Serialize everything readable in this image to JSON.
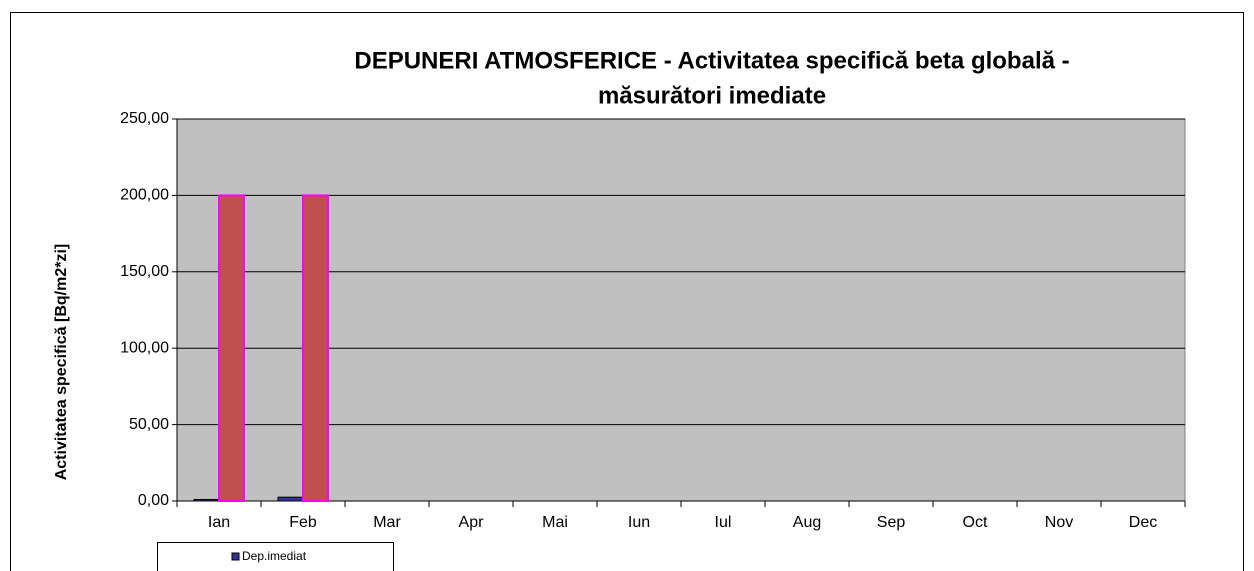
{
  "chart_data": {
    "type": "bar",
    "title": [
      "DEPUNERI ATMOSFERICE - Activitatea specifică beta globală -",
      "măsurători imediate"
    ],
    "y_label": "Activitatea  specifică  [Bq/m2*zi]",
    "categories": [
      "Ian",
      "Feb",
      "Mar",
      "Apr",
      "Mai",
      "Iun",
      "Iul",
      "Aug",
      "Sep",
      "Oct",
      "Nov",
      "Dec"
    ],
    "series": [
      {
        "name": "Dep.imediat",
        "color": "#333399",
        "values": [
          1,
          2.5,
          null,
          null,
          null,
          null,
          null,
          null,
          null,
          null,
          null,
          null
        ]
      },
      {
        "color": "#c0504d",
        "edge": "#ff00ff",
        "values": [
          200,
          200,
          null,
          null,
          null,
          null,
          null,
          null,
          null,
          null,
          null,
          null
        ]
      }
    ],
    "ylim": [
      0,
      250
    ],
    "yticks": [
      {
        "value": 0,
        "label": "0,00"
      },
      {
        "value": 50,
        "label": "50,00"
      },
      {
        "value": 100,
        "label": "100,00"
      },
      {
        "value": 150,
        "label": "150,00"
      },
      {
        "value": 200,
        "label": "200,00"
      },
      {
        "value": 250,
        "label": "250,00"
      }
    ],
    "grid": true,
    "plot_background": "#c0c0c0"
  }
}
